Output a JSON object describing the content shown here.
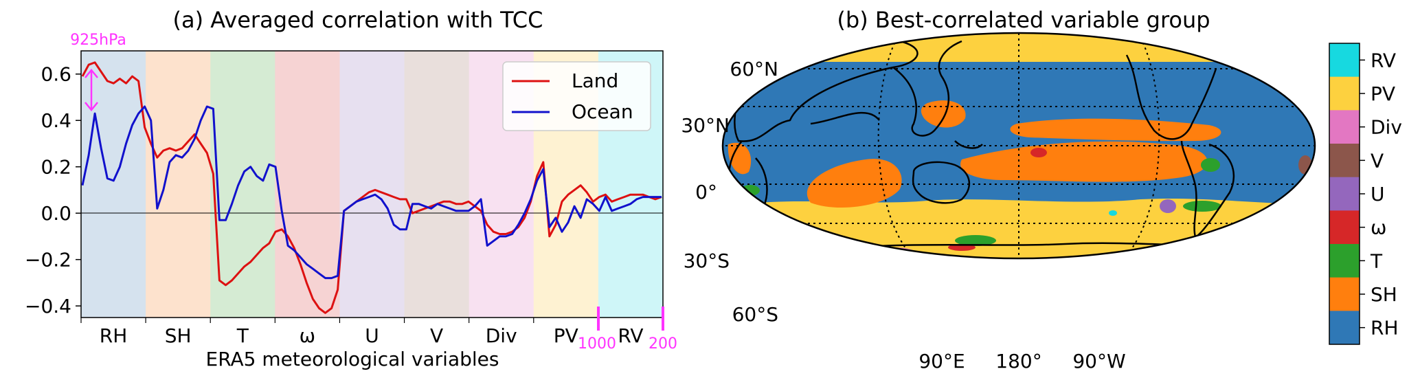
{
  "chart_data": [
    {
      "type": "line",
      "title": "(a) Averaged correlation with TCC",
      "xlabel": "ERA5 meteorological variables",
      "ylabel": "",
      "ylim": [
        -0.45,
        0.7
      ],
      "yticks": [
        -0.4,
        -0.2,
        0.0,
        0.2,
        0.4,
        0.6
      ],
      "ytick_labels": [
        "−0.4",
        "−0.2",
        "0.0",
        "0.2",
        "0.4",
        "0.6"
      ],
      "grid": false,
      "legend_position": "top-right",
      "groups": [
        {
          "label": "RH",
          "color": "#d5e2ee"
        },
        {
          "label": "SH",
          "color": "#fde2cd"
        },
        {
          "label": "T",
          "color": "#d5ebd3"
        },
        {
          "label": "ω",
          "color": "#f6d3d3"
        },
        {
          "label": "U",
          "color": "#e7e0f0"
        },
        {
          "label": "V",
          "color": "#e9dfdc"
        },
        {
          "label": "Div",
          "color": "#f8e1f1"
        },
        {
          "label": "PV",
          "color": "#fef2d2"
        },
        {
          "label": "RV",
          "color": "#cff6f8"
        }
      ],
      "annotations": {
        "level_top": "925hPa",
        "level_1000": "1000",
        "level_200": "200",
        "annotation_color": "#ff33ff"
      },
      "series": [
        {
          "name": "Land",
          "color": "#dd1111",
          "values": [
            0.59,
            0.64,
            0.65,
            0.61,
            0.57,
            0.56,
            0.58,
            0.56,
            0.59,
            0.57,
            0.37,
            0.3,
            0.24,
            0.27,
            0.28,
            0.27,
            0.28,
            0.31,
            0.34,
            0.3,
            0.26,
            0.17,
            -0.29,
            -0.31,
            -0.29,
            -0.26,
            -0.23,
            -0.21,
            -0.18,
            -0.15,
            -0.13,
            -0.08,
            -0.07,
            -0.1,
            -0.15,
            -0.22,
            -0.3,
            -0.37,
            -0.41,
            -0.43,
            -0.41,
            -0.33,
            0.01,
            0.03,
            0.05,
            0.07,
            0.09,
            0.1,
            0.09,
            0.08,
            0.07,
            0.06,
            0.06,
            0.0,
            0.01,
            0.02,
            0.03,
            0.04,
            0.05,
            0.05,
            0.04,
            0.04,
            0.05,
            0.03,
            0.01,
            -0.05,
            -0.08,
            -0.09,
            -0.09,
            -0.08,
            -0.06,
            -0.02,
            0.05,
            0.16,
            0.22,
            -0.1,
            -0.05,
            0.05,
            0.08,
            0.1,
            0.12,
            0.09,
            0.05,
            0.07,
            0.08,
            0.05,
            0.06,
            0.07,
            0.08,
            0.08,
            0.08,
            0.07,
            0.06,
            0.07
          ]
        },
        {
          "name": "Ocean",
          "color": "#1111cc",
          "values": [
            0.12,
            0.25,
            0.43,
            0.28,
            0.15,
            0.14,
            0.2,
            0.3,
            0.38,
            0.43,
            0.46,
            0.4,
            0.02,
            0.1,
            0.22,
            0.25,
            0.24,
            0.27,
            0.32,
            0.4,
            0.46,
            0.45,
            -0.03,
            -0.03,
            0.04,
            0.12,
            0.18,
            0.2,
            0.16,
            0.14,
            0.21,
            0.2,
            0.01,
            -0.14,
            -0.16,
            -0.19,
            -0.22,
            -0.24,
            -0.26,
            -0.28,
            -0.28,
            -0.27,
            0.01,
            0.03,
            0.05,
            0.06,
            0.07,
            0.08,
            0.06,
            0.02,
            -0.05,
            -0.07,
            -0.07,
            0.04,
            0.04,
            0.03,
            0.02,
            0.04,
            0.03,
            0.02,
            0.01,
            0.01,
            0.01,
            0.03,
            0.06,
            -0.14,
            -0.12,
            -0.1,
            -0.1,
            -0.09,
            -0.05,
            0.0,
            0.06,
            0.14,
            0.19,
            -0.06,
            -0.02,
            -0.08,
            -0.04,
            0.03,
            -0.02,
            0.06,
            0.04,
            0.01,
            0.07,
            0.01,
            0.02,
            0.03,
            0.04,
            0.06,
            0.07,
            0.07,
            0.07,
            0.07
          ]
        }
      ]
    },
    {
      "type": "heatmap",
      "title": "(b) Best-correlated variable group",
      "projection": "Robinson, centered 180°",
      "lat_labels": [
        "60°N",
        "30°N",
        "0°",
        "30°S",
        "60°S"
      ],
      "lon_labels": [
        "90°E",
        "180°",
        "90°W"
      ],
      "grid": true,
      "colorbar": [
        {
          "label": "RV",
          "color": "#17d9e0"
        },
        {
          "label": "PV",
          "color": "#fdd13f"
        },
        {
          "label": "Div",
          "color": "#e377c2"
        },
        {
          "label": "V",
          "color": "#8c564b"
        },
        {
          "label": "U",
          "color": "#9467bd"
        },
        {
          "label": "ω",
          "color": "#d62728"
        },
        {
          "label": "T",
          "color": "#2ca02c"
        },
        {
          "label": "SH",
          "color": "#ff7f0e"
        },
        {
          "label": "RH",
          "color": "#2f78b6"
        }
      ]
    }
  ]
}
